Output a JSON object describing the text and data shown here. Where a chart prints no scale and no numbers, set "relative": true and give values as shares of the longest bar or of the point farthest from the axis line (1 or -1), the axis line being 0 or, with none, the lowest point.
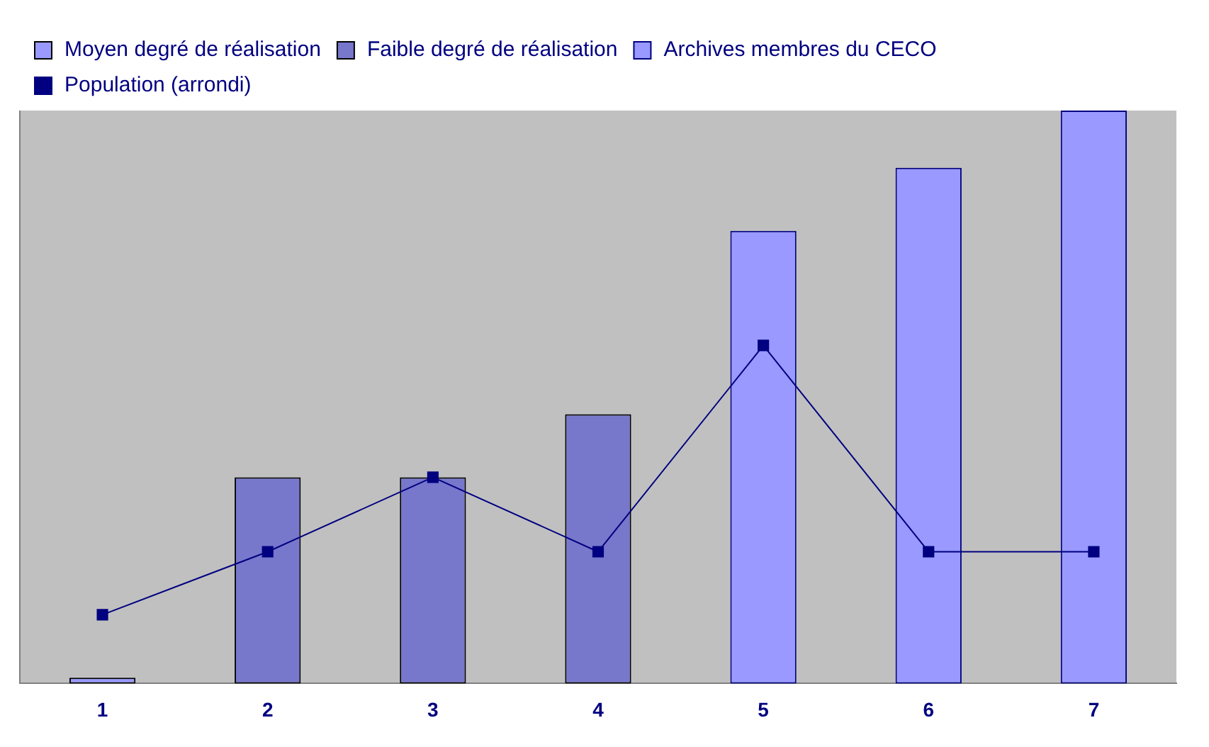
{
  "chart_data": {
    "type": "bar",
    "relative": true,
    "categories": [
      "1",
      "2",
      "3",
      "4",
      "5",
      "6",
      "7"
    ],
    "series": [
      {
        "name": "Moyen degré de réalisation",
        "color": "#9999ff",
        "values": [
          0.01,
          null,
          null,
          null,
          null,
          null,
          null
        ]
      },
      {
        "name": "Faible degré de réalisation",
        "color": "#7777cc",
        "values": [
          null,
          0.36,
          0.36,
          0.47,
          null,
          null,
          null
        ]
      },
      {
        "name": "Archives membres du CECO",
        "color": "#9999ff",
        "values": [
          null,
          null,
          null,
          null,
          0.79,
          0.9,
          1
        ]
      },
      {
        "name": "Population (arrondi)",
        "type": "line",
        "color": "#000080",
        "marker": "square",
        "values": [
          0.12,
          0.23,
          0.36,
          0.23,
          0.59,
          0.23,
          0.23
        ]
      }
    ],
    "legend": "top left",
    "grid": false,
    "tick_labels": "x"
  }
}
